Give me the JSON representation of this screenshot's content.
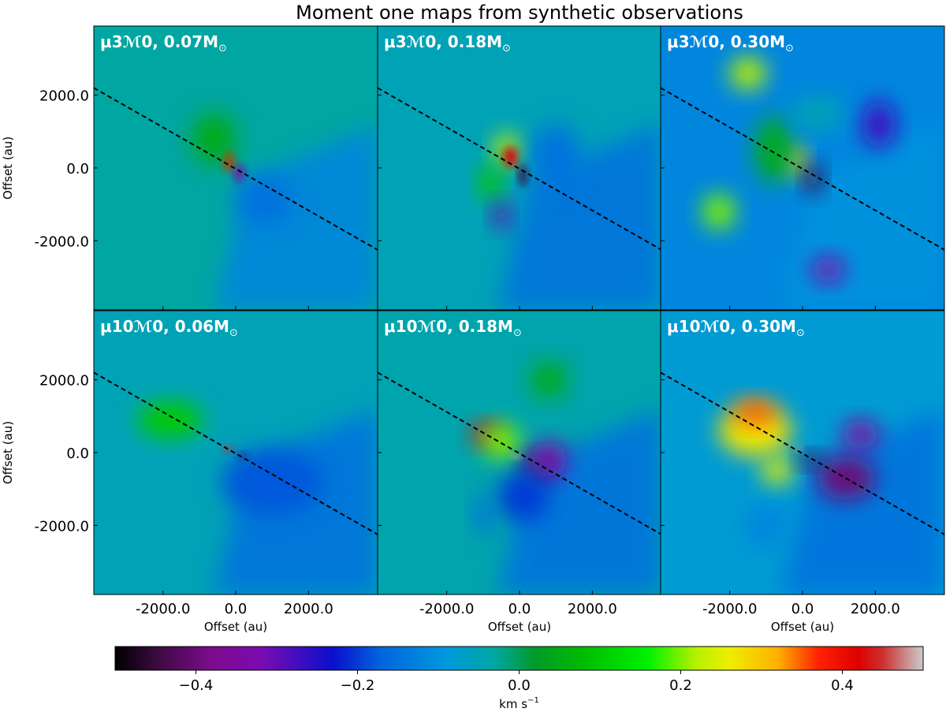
{
  "figure": {
    "title": "Moment one maps from synthetic observations"
  },
  "chart_data": {
    "type": "heatmap",
    "title": "Moment one maps from synthetic observations",
    "colormap": "nipy_spectral",
    "grid": false,
    "xlabel": "Offset (au)",
    "ylabel": "Offset (au)",
    "xlim": [
      -3900,
      3900
    ],
    "ylim": [
      -3900,
      3900
    ],
    "xticks": [
      -2000,
      0,
      2000
    ],
    "yticks": [
      -2000,
      0,
      2000
    ],
    "xtick_labels": [
      "-2000.0",
      "0.0",
      "2000.0"
    ],
    "ytick_labels": [
      "-2000.0",
      "0.0",
      "2000.0"
    ],
    "colorbar": {
      "label_main": "km s",
      "label_exp": "−1",
      "range": [
        -0.5,
        0.5
      ],
      "ticks": [
        -0.4,
        -0.2,
        0.0,
        0.2,
        0.4
      ],
      "tick_labels": [
        "−0.4",
        "−0.2",
        "0.0",
        "0.2",
        "0.4"
      ],
      "placement": "bottom, horizontal"
    },
    "dashed_line": {
      "from": [
        -3900,
        2200
      ],
      "to": [
        3900,
        -2250
      ],
      "style": "dashed",
      "color": "#000000"
    },
    "colormap_stops": [
      [
        0.0,
        "#000000"
      ],
      [
        0.05,
        "#3a0a3e"
      ],
      [
        0.12,
        "#7d0b8f"
      ],
      [
        0.18,
        "#7b0bb0"
      ],
      [
        0.27,
        "#0a10cc"
      ],
      [
        0.33,
        "#0066dd"
      ],
      [
        0.41,
        "#0099dd"
      ],
      [
        0.47,
        "#00a6a2"
      ],
      [
        0.52,
        "#009a28"
      ],
      [
        0.58,
        "#00bc00"
      ],
      [
        0.66,
        "#00f200"
      ],
      [
        0.72,
        "#b9f000"
      ],
      [
        0.76,
        "#eeee00"
      ],
      [
        0.82,
        "#ffb000"
      ],
      [
        0.87,
        "#ff2200"
      ],
      [
        0.92,
        "#dd0000"
      ],
      [
        0.95,
        "#cc3030"
      ],
      [
        1.0,
        "#cccccc"
      ]
    ],
    "panels": [
      {
        "label_main": "μ3ℳ0, 0.07M",
        "label_sub": "⊙",
        "background": -0.03,
        "shadow": -0.12,
        "blobs": [
          [
            -200,
            200,
            0.38,
            150,
            280
          ],
          [
            100,
            -150,
            -0.35,
            150,
            250
          ],
          [
            -600,
            800,
            0.05,
            600,
            700
          ],
          [
            800,
            -900,
            -0.15,
            800,
            700
          ]
        ]
      },
      {
        "label_main": "μ3ℳ0, 0.18M",
        "label_sub": "⊙",
        "background": -0.05,
        "shadow": -0.15,
        "blobs": [
          [
            -350,
            500,
            0.22,
            350,
            450
          ],
          [
            -250,
            300,
            0.43,
            200,
            280
          ],
          [
            100,
            -200,
            -0.45,
            120,
            300
          ],
          [
            -800,
            -400,
            0.1,
            300,
            500
          ],
          [
            -500,
            -1300,
            -0.3,
            250,
            350
          ],
          [
            1000,
            300,
            -0.15,
            700,
            900
          ]
        ]
      },
      {
        "label_main": "μ3ℳ0, 0.30M",
        "label_sub": "⊙",
        "background": -0.12,
        "shadow": -0.1,
        "blobs": [
          [
            -1500,
            2600,
            0.22,
            500,
            450
          ],
          [
            -2300,
            -1200,
            0.2,
            450,
            500
          ],
          [
            -200,
            200,
            0.28,
            300,
            400
          ],
          [
            300,
            -300,
            -0.45,
            250,
            400
          ],
          [
            2100,
            1200,
            -0.27,
            450,
            650
          ],
          [
            700,
            -2800,
            -0.33,
            450,
            350
          ],
          [
            -800,
            500,
            0.05,
            500,
            900
          ],
          [
            400,
            1500,
            -0.05,
            700,
            500
          ]
        ]
      },
      {
        "label_main": "μ10ℳ0, 0.06M",
        "label_sub": "⊙",
        "background": -0.05,
        "shadow": -0.15,
        "blobs": [
          [
            -1800,
            900,
            0.1,
            900,
            500
          ],
          [
            -200,
            100,
            0.45,
            120,
            90
          ],
          [
            200,
            -100,
            -0.43,
            140,
            90
          ],
          [
            1000,
            -800,
            -0.18,
            1400,
            900
          ]
        ]
      },
      {
        "label_main": "μ10ℳ0, 0.18M",
        "label_sub": "⊙",
        "background": -0.04,
        "shadow": -0.15,
        "blobs": [
          [
            -900,
            500,
            0.41,
            400,
            300
          ],
          [
            -500,
            300,
            0.2,
            500,
            500
          ],
          [
            500,
            -400,
            -0.43,
            400,
            350
          ],
          [
            800,
            -200,
            -0.33,
            500,
            500
          ],
          [
            100,
            -1200,
            -0.2,
            700,
            700
          ],
          [
            -1000,
            -1700,
            -0.15,
            250,
            600
          ],
          [
            800,
            2000,
            0.05,
            500,
            500
          ],
          [
            -100,
            -100,
            0.5,
            100,
            60
          ]
        ]
      },
      {
        "label_main": "μ10ℳ0, 0.30M",
        "label_sub": "⊙",
        "background": -0.08,
        "shadow": -0.15,
        "blobs": [
          [
            -1300,
            600,
            0.27,
            1000,
            700
          ],
          [
            -1300,
            1100,
            0.35,
            600,
            350
          ],
          [
            1200,
            -700,
            -0.4,
            800,
            600
          ],
          [
            1600,
            500,
            -0.35,
            500,
            400
          ],
          [
            -700,
            -500,
            0.25,
            400,
            400
          ],
          [
            200,
            -200,
            -0.45,
            300,
            200
          ],
          [
            -1000,
            -2000,
            -0.12,
            600,
            600
          ],
          [
            -100,
            100,
            0.5,
            80,
            60
          ]
        ]
      }
    ]
  }
}
